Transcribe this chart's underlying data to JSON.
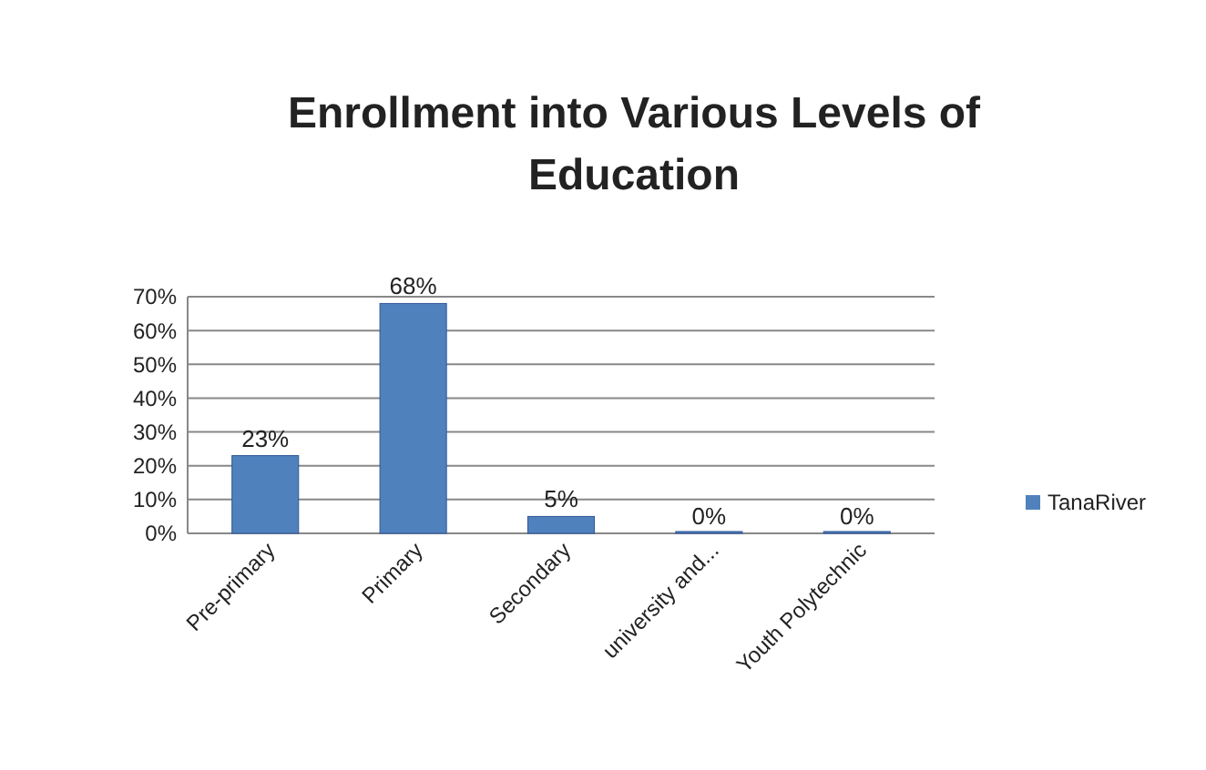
{
  "chart_data": {
    "type": "bar",
    "title": "Enrollment into Various Levels of Education",
    "categories": [
      "Pre-primary",
      "Primary",
      "Secondary",
      "university and...",
      "Youth Polytechnic"
    ],
    "series": [
      {
        "name": "TanaRiver",
        "color": "#4f81bd",
        "values": [
          23,
          68,
          5,
          0,
          0
        ]
      }
    ],
    "ylim": [
      0,
      70
    ],
    "yticks": [
      {
        "value": 0,
        "label": "0%"
      },
      {
        "value": 10,
        "label": "10%"
      },
      {
        "value": 20,
        "label": "20%"
      },
      {
        "value": 30,
        "label": "30%"
      },
      {
        "value": 40,
        "label": "40%"
      },
      {
        "value": 50,
        "label": "50%"
      },
      {
        "value": 60,
        "label": "60%"
      },
      {
        "value": 70,
        "label": "70%"
      }
    ],
    "value_labels": [
      "23%",
      "68%",
      "5%",
      "0%",
      "0%"
    ],
    "grid": true,
    "legend": "right"
  }
}
